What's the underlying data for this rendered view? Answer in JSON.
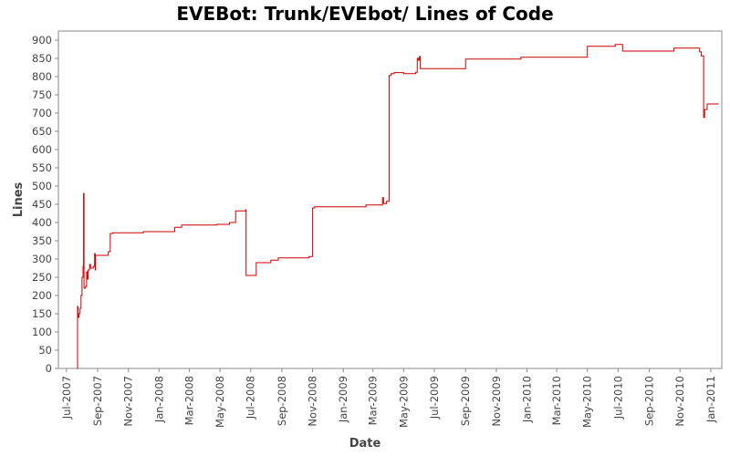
{
  "chart_data": {
    "type": "line",
    "title": "EVEBot: Trunk/EVEbot/ Lines of Code",
    "xlabel": "Date",
    "ylabel": "Lines",
    "ylim": [
      0,
      925
    ],
    "xlim": [
      "2007-06-15",
      "2011-01-23"
    ],
    "yticks": [
      0,
      50,
      100,
      150,
      200,
      250,
      300,
      350,
      400,
      450,
      500,
      550,
      600,
      650,
      700,
      750,
      800,
      850,
      900
    ],
    "xticks": [
      {
        "date": "2007-07-01",
        "label": "Jul-2007"
      },
      {
        "date": "2007-09-01",
        "label": "Sep-2007"
      },
      {
        "date": "2007-11-01",
        "label": "Nov-2007"
      },
      {
        "date": "2008-01-01",
        "label": "Jan-2008"
      },
      {
        "date": "2008-03-01",
        "label": "Mar-2008"
      },
      {
        "date": "2008-05-01",
        "label": "May-2008"
      },
      {
        "date": "2008-07-01",
        "label": "Jul-2008"
      },
      {
        "date": "2008-09-01",
        "label": "Sep-2008"
      },
      {
        "date": "2008-11-01",
        "label": "Nov-2008"
      },
      {
        "date": "2009-01-01",
        "label": "Jan-2009"
      },
      {
        "date": "2009-03-01",
        "label": "Mar-2009"
      },
      {
        "date": "2009-05-01",
        "label": "May-2009"
      },
      {
        "date": "2009-07-01",
        "label": "Jul-2009"
      },
      {
        "date": "2009-09-01",
        "label": "Sep-2009"
      },
      {
        "date": "2009-11-01",
        "label": "Nov-2009"
      },
      {
        "date": "2010-01-01",
        "label": "Jan-2010"
      },
      {
        "date": "2010-03-01",
        "label": "Mar-2010"
      },
      {
        "date": "2010-05-01",
        "label": "May-2010"
      },
      {
        "date": "2010-07-01",
        "label": "Jul-2010"
      },
      {
        "date": "2010-09-01",
        "label": "Sep-2010"
      },
      {
        "date": "2010-11-01",
        "label": "Nov-2010"
      },
      {
        "date": "2011-01-01",
        "label": "Jan-2011"
      }
    ],
    "grid": false,
    "legend": "none",
    "series": [
      {
        "color": "#cc0000",
        "step": true,
        "points": [
          [
            "2007-07-22",
            0
          ],
          [
            "2007-07-23",
            170
          ],
          [
            "2007-07-24",
            140
          ],
          [
            "2007-07-26",
            150
          ],
          [
            "2007-07-28",
            165
          ],
          [
            "2007-07-30",
            200
          ],
          [
            "2007-08-01",
            250
          ],
          [
            "2007-08-03",
            280
          ],
          [
            "2007-08-04",
            480
          ],
          [
            "2007-08-05",
            220
          ],
          [
            "2007-08-08",
            225
          ],
          [
            "2007-08-10",
            265
          ],
          [
            "2007-08-11",
            245
          ],
          [
            "2007-08-13",
            270
          ],
          [
            "2007-08-16",
            285
          ],
          [
            "2007-08-18",
            275
          ],
          [
            "2007-08-23",
            280
          ],
          [
            "2007-08-26",
            315
          ],
          [
            "2007-08-27",
            270
          ],
          [
            "2007-08-28",
            310
          ],
          [
            "2007-09-22",
            320
          ],
          [
            "2007-09-26",
            370
          ],
          [
            "2007-10-01",
            372
          ],
          [
            "2007-12-01",
            375
          ],
          [
            "2008-02-01",
            387
          ],
          [
            "2008-02-15",
            393
          ],
          [
            "2008-04-25",
            395
          ],
          [
            "2008-05-20",
            400
          ],
          [
            "2008-06-01",
            432
          ],
          [
            "2008-06-21",
            435
          ],
          [
            "2008-06-22",
            255
          ],
          [
            "2008-07-12",
            290
          ],
          [
            "2008-08-10",
            297
          ],
          [
            "2008-08-25",
            303
          ],
          [
            "2008-10-25",
            307
          ],
          [
            "2008-11-01",
            440
          ],
          [
            "2008-11-05",
            443
          ],
          [
            "2009-02-15",
            448
          ],
          [
            "2009-03-20",
            468
          ],
          [
            "2009-03-22",
            452
          ],
          [
            "2009-03-28",
            458
          ],
          [
            "2009-04-02",
            803
          ],
          [
            "2009-04-06",
            808
          ],
          [
            "2009-04-12",
            811
          ],
          [
            "2009-05-01",
            808
          ],
          [
            "2009-05-25",
            812
          ],
          [
            "2009-05-28",
            850
          ],
          [
            "2009-05-30",
            845
          ],
          [
            "2009-06-01",
            855
          ],
          [
            "2009-06-03",
            822
          ],
          [
            "2009-09-01",
            848
          ],
          [
            "2009-12-20",
            853
          ],
          [
            "2010-05-01",
            883
          ],
          [
            "2010-06-25",
            888
          ],
          [
            "2010-07-10",
            870
          ],
          [
            "2010-10-20",
            878
          ],
          [
            "2010-12-10",
            868
          ],
          [
            "2010-12-13",
            857
          ],
          [
            "2010-12-18",
            688
          ],
          [
            "2010-12-20",
            710
          ],
          [
            "2010-12-25",
            725
          ],
          [
            "2011-01-15",
            727
          ]
        ]
      }
    ]
  }
}
